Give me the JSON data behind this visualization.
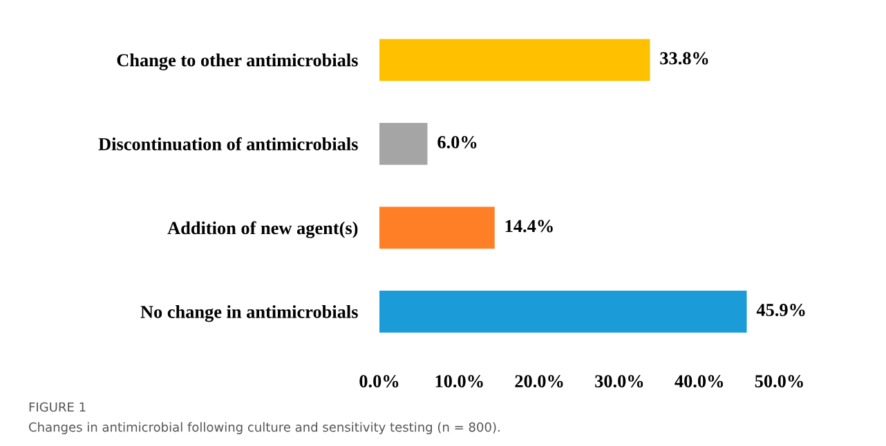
{
  "chart_data": {
    "type": "bar",
    "orientation": "horizontal",
    "categories": [
      "Change to other antimicrobials",
      "Discontinuation of antimicrobials",
      "Addition of new agent(s)",
      "No change in antimicrobials"
    ],
    "values": [
      33.8,
      6.0,
      14.4,
      45.9
    ],
    "colors": [
      "#ffc000",
      "#a5a5a5",
      "#ff7f27",
      "#1b9bd7"
    ],
    "value_labels": [
      "33.8%",
      "6.0%",
      "14.4%",
      "45.9%"
    ],
    "xlim": [
      0,
      50
    ],
    "xticks": [
      {
        "value": 0,
        "label": "0.0%"
      },
      {
        "value": 10,
        "label": "10.0%"
      },
      {
        "value": 20,
        "label": "20.0%"
      },
      {
        "value": 30,
        "label": "30.0%"
      },
      {
        "value": 40,
        "label": "40.0%"
      },
      {
        "value": 50,
        "label": "50.0%"
      }
    ],
    "grid": false,
    "annotations": [
      "FIGURE 1",
      "Changes in antimicrobial following culture and sensitivity testing (n = 800)."
    ]
  }
}
